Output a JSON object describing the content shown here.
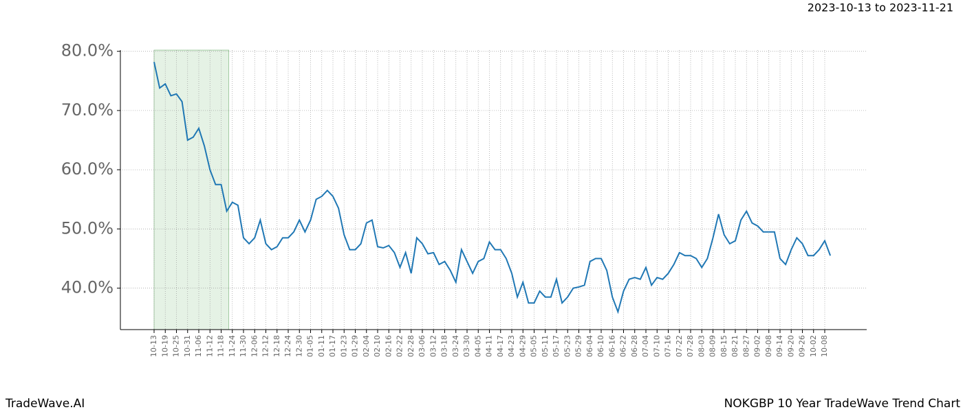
{
  "chart_data": {
    "type": "line",
    "subtitle": "2023-10-13 to 2023-11-21",
    "footer_left": "TradeWave.AI",
    "footer_right": "NOKGBP 10 Year TradeWave Trend Chart",
    "categories": [
      "10-13",
      null,
      "10-19",
      null,
      "10-25",
      null,
      "10-31",
      null,
      "11-06",
      null,
      "11-12",
      null,
      "11-18",
      null,
      "11-24",
      null,
      "11-30",
      null,
      "12-06",
      null,
      "12-12",
      null,
      "12-18",
      null,
      "12-24",
      null,
      "12-30",
      null,
      "01-05",
      null,
      "01-11",
      null,
      "01-17",
      null,
      "01-23",
      null,
      "01-29",
      null,
      "02-04",
      null,
      "02-10",
      null,
      "02-16",
      null,
      "02-22",
      null,
      "02-28",
      null,
      "03-06",
      null,
      "03-12",
      null,
      "03-18",
      null,
      "03-24",
      null,
      "03-30",
      null,
      "04-05",
      null,
      "04-11",
      null,
      "04-17",
      null,
      "04-23",
      null,
      "04-29",
      null,
      "05-05",
      null,
      "05-11",
      null,
      "05-17",
      null,
      "05-23",
      null,
      "05-29",
      null,
      "06-04",
      null,
      "06-10",
      null,
      "06-16",
      null,
      "06-22",
      null,
      "06-28",
      null,
      "07-04",
      null,
      "07-10",
      null,
      "07-16",
      null,
      "07-22",
      null,
      "07-28",
      null,
      "08-03",
      null,
      "08-09",
      null,
      "08-15",
      null,
      "08-21",
      null,
      "08-27",
      null,
      "09-02",
      null,
      "09-08",
      null,
      "09-14",
      null,
      "09-20",
      null,
      "09-26",
      null,
      "10-02",
      null,
      "10-08",
      null
    ],
    "series": [
      {
        "color": "#1f77b4",
        "values": [
          78.2,
          73.8,
          74.5,
          72.5,
          72.8,
          71.5,
          65,
          65.5,
          67,
          64,
          60,
          57.5,
          57.5,
          53,
          54.5,
          54,
          48.5,
          47.5,
          48.5,
          51.5,
          47.5,
          46.5,
          47,
          48.5,
          48.5,
          49.5,
          51.5,
          49.5,
          51.5,
          55,
          55.5,
          56.5,
          55.5,
          53.5,
          49,
          46.5,
          46.5,
          47.5,
          51,
          51.5,
          47,
          46.8,
          47.2,
          46,
          43.5,
          46,
          42.5,
          48.5,
          47.5,
          45.8,
          46,
          44,
          44.5,
          43,
          41,
          46.5,
          44.5,
          42.5,
          44.5,
          45,
          47.8,
          46.5,
          46.5,
          45,
          42.5,
          38.5,
          41,
          37.5,
          37.5,
          39.5,
          38.5,
          38.5,
          41.5,
          37.5,
          38.5,
          40,
          40.2,
          40.5,
          44.5,
          45,
          45,
          43,
          38.5,
          36,
          39.5,
          41.5,
          41.8,
          41.5,
          43.5,
          40.5,
          41.8,
          41.5,
          42.5,
          44,
          46,
          45.5,
          45.5,
          45,
          43.5,
          45,
          48.5,
          52.5,
          49,
          47.5,
          48,
          51.5,
          53,
          51,
          50.5,
          49.5,
          49.5,
          49.5,
          45,
          44,
          46.5,
          48.5,
          47.5,
          45.5,
          45.5,
          46.5,
          48,
          45.5
        ]
      }
    ],
    "shaded_span": [
      0,
      13
    ],
    "shade_color": "#e5f2e5",
    "ylim": [
      33,
      80.2
    ],
    "yticks": [
      {
        "value": 40,
        "label": "40.0%"
      },
      {
        "value": 50,
        "label": "50.0%"
      },
      {
        "value": 60,
        "label": "60.0%"
      },
      {
        "value": 70,
        "label": "70.0%"
      },
      {
        "value": 80,
        "label": "80.0%"
      }
    ],
    "grid": true
  }
}
